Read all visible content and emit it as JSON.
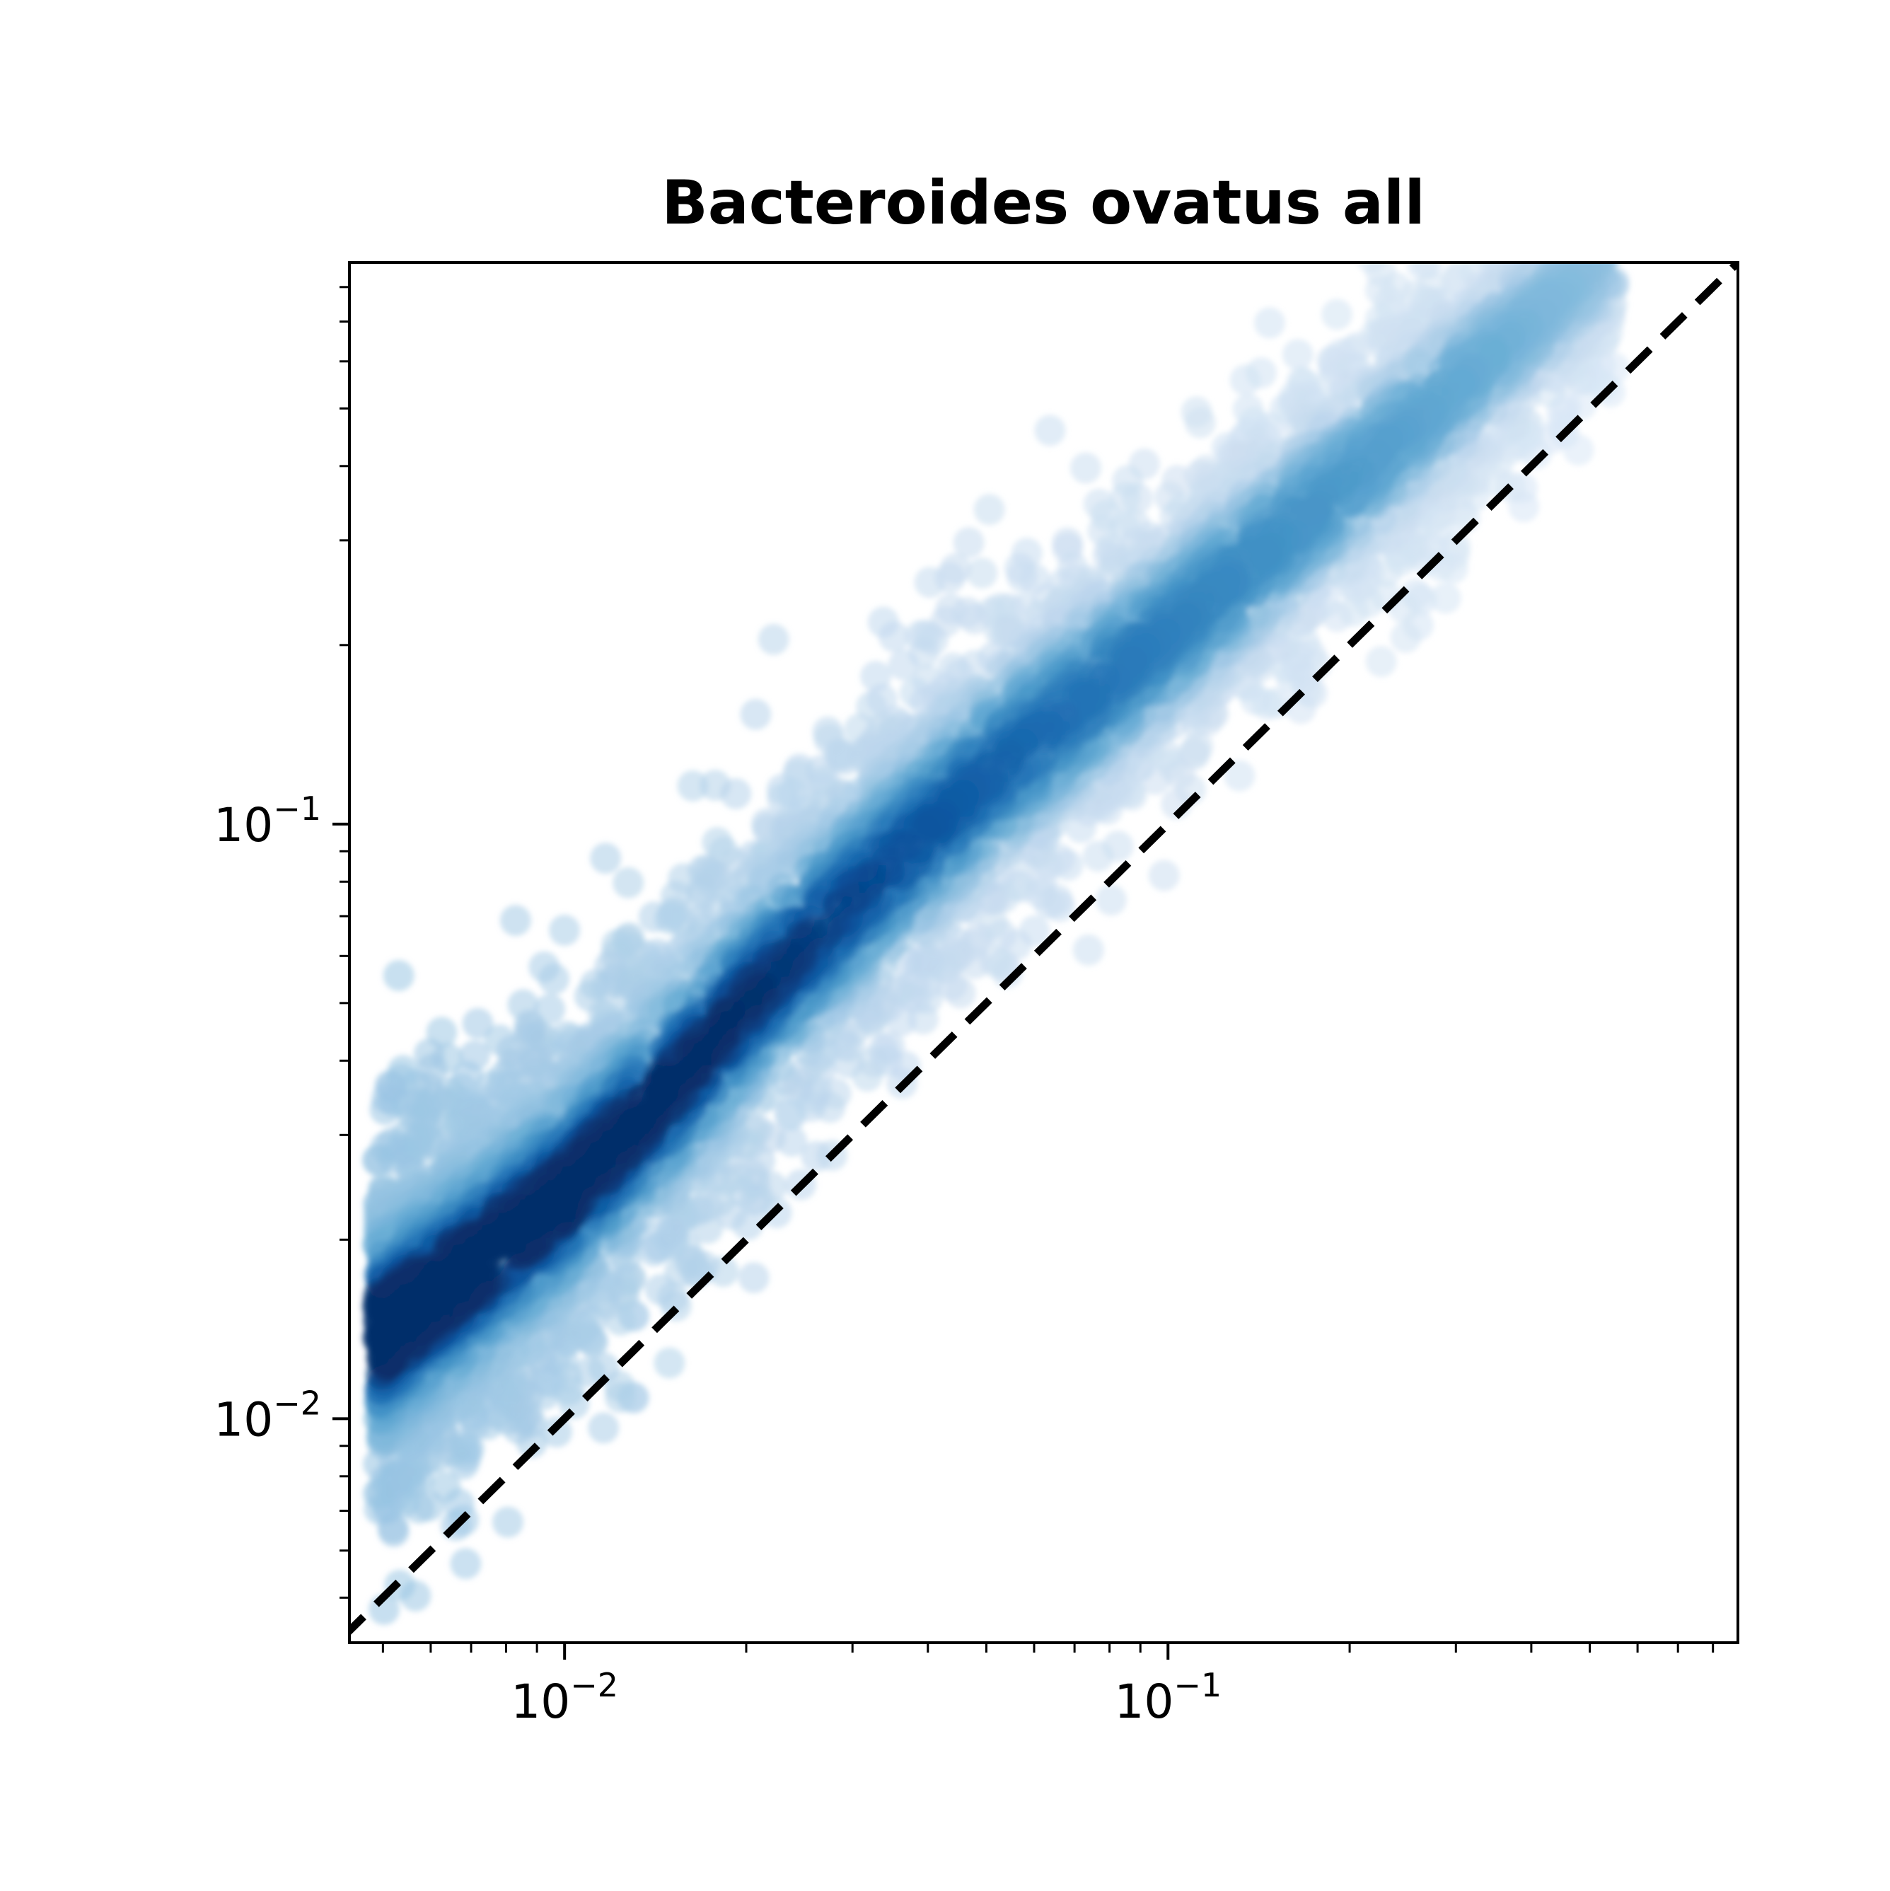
{
  "chart_data": {
    "type": "scatter",
    "title": "Bacteroides ovatus all",
    "xlabel": "",
    "ylabel": "",
    "x_scale": "log",
    "y_scale": "log",
    "xlim": [
      0.0044,
      0.88
    ],
    "ylim": [
      0.0042,
      0.88
    ],
    "x_ticks": [
      {
        "value": 0.01,
        "label": "10−2"
      },
      {
        "value": 0.1,
        "label": "10−1"
      }
    ],
    "y_ticks": [
      {
        "value": 0.01,
        "label": "10−2"
      },
      {
        "value": 0.1,
        "label": "10−1"
      }
    ],
    "reference_line": {
      "style": "dashed",
      "color": "#000000",
      "slope": 1,
      "description": "y = x"
    },
    "colormap": "Blues",
    "color_meaning": "point density (darker = denser)",
    "colors": {
      "dense": "#08306b",
      "mid": "#2171b5",
      "light": "#9ecae1",
      "sparse": "#f7fbff"
    },
    "grid": false,
    "legend": "none",
    "trend_points": [
      {
        "x": 0.005,
        "y": 0.014
      },
      {
        "x": 0.007,
        "y": 0.018
      },
      {
        "x": 0.01,
        "y": 0.024
      },
      {
        "x": 0.015,
        "y": 0.036
      },
      {
        "x": 0.02,
        "y": 0.05
      },
      {
        "x": 0.03,
        "y": 0.075
      },
      {
        "x": 0.05,
        "y": 0.12
      },
      {
        "x": 0.1,
        "y": 0.21
      },
      {
        "x": 0.2,
        "y": 0.38
      },
      {
        "x": 0.4,
        "y": 0.7
      }
    ]
  }
}
